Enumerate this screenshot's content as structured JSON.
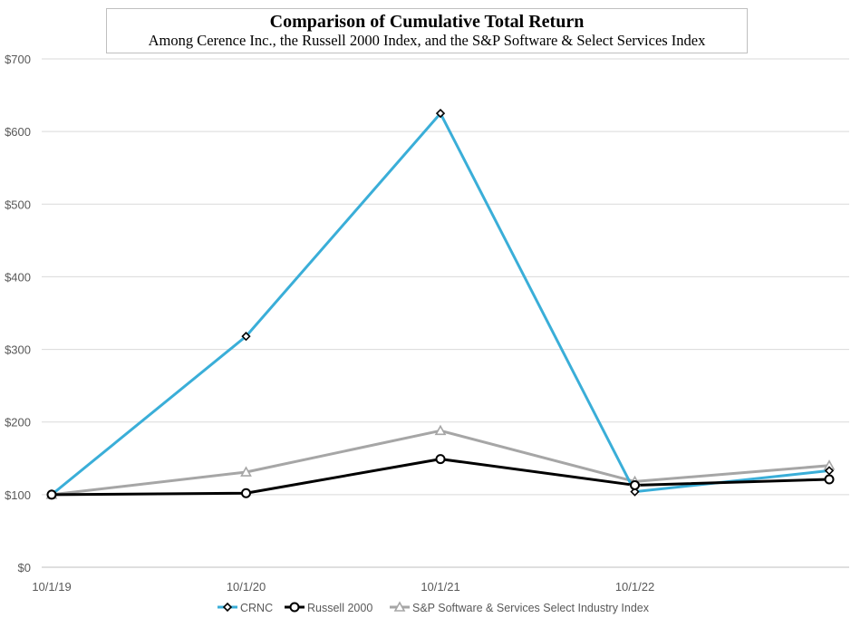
{
  "chart_data": {
    "type": "line",
    "title": "Comparison of Cumulative Total Return",
    "subtitle": "Among Cerence Inc., the Russell 2000 Index, and the S&P Software & Select Services Index",
    "xlabel": "",
    "ylabel": "",
    "x_tick_labels": [
      "10/1/19",
      "10/1/20",
      "10/1/21",
      "10/1/22"
    ],
    "y_tick_labels": [
      "$0",
      "$100",
      "$200",
      "$300",
      "$400",
      "$500",
      "$600",
      "$700"
    ],
    "ylim": [
      0,
      700
    ],
    "y_tick_step": 100,
    "grid": "horizontal",
    "legend_position": "bottom",
    "series": [
      {
        "name": "CRNC",
        "color": "#3aaed8",
        "marker": "diamond",
        "values": [
          100,
          318,
          625,
          104,
          133
        ]
      },
      {
        "name": "Russell 2000",
        "color": "#000000",
        "marker": "circle",
        "values": [
          100,
          102,
          149,
          113,
          121
        ]
      },
      {
        "name": "S&P Software & Services Select Industry Index",
        "color": "#a6a6a6",
        "marker": "triangle",
        "values": [
          100,
          131,
          188,
          118,
          140
        ]
      }
    ]
  }
}
